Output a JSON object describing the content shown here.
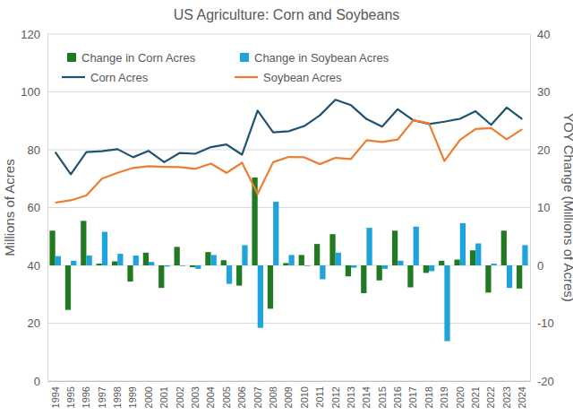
{
  "chart_data": {
    "type": "combo",
    "title": "US Agriculture: Corn and Soybeans",
    "y_label": "Millions of Acres",
    "y2_label": "YOY Change (Millions of Acres)",
    "categories": [
      "1994",
      "1995",
      "1996",
      "1997",
      "1998",
      "1999",
      "2000",
      "2001",
      "2002",
      "2003",
      "2004",
      "2005",
      "2006",
      "2007",
      "2008",
      "2009",
      "2010",
      "2011",
      "2012",
      "2013",
      "2014",
      "2015",
      "2016",
      "2017",
      "2018",
      "2019",
      "2020",
      "2021",
      "2022",
      "2023",
      "2024"
    ],
    "ylim": [
      0,
      120
    ],
    "yticks": [
      0,
      20,
      40,
      60,
      80,
      100,
      120
    ],
    "y2lim": [
      -20,
      40
    ],
    "y2ticks": [
      -20,
      -10,
      0,
      10,
      20,
      30,
      40
    ],
    "grid": true,
    "legend": "top-left",
    "series": [
      {
        "name": "Change in Corn Acres",
        "type": "bar",
        "axis": "y2",
        "color": "#217a21",
        "values": [
          6.0,
          -7.7,
          7.7,
          0.3,
          0.7,
          -2.8,
          2.2,
          -3.9,
          3.2,
          -0.3,
          2.3,
          0.9,
          -3.5,
          15.2,
          -7.5,
          0.4,
          1.8,
          3.7,
          5.4,
          -1.9,
          -4.8,
          -2.6,
          6.0,
          -3.8,
          -1.3,
          0.8,
          1.0,
          2.6,
          -4.7,
          6.0,
          -4.0
        ]
      },
      {
        "name": "Change in Soybean Acres",
        "type": "bar",
        "axis": "y2",
        "color": "#1fa3dc",
        "values": [
          1.6,
          0.8,
          1.7,
          5.8,
          2.0,
          1.7,
          0.6,
          -0.2,
          -0.1,
          -0.6,
          1.8,
          -3.2,
          3.5,
          -10.8,
          11.0,
          1.8,
          -0.1,
          -2.4,
          2.2,
          -0.4,
          6.5,
          -0.6,
          0.8,
          6.7,
          -1.0,
          -13.1,
          7.3,
          3.8,
          0.3,
          -3.9,
          3.5
        ]
      },
      {
        "name": "Corn Acres",
        "type": "line",
        "color": "#1f5470",
        "values": [
          79.2,
          71.5,
          79.2,
          79.5,
          80.2,
          77.4,
          79.6,
          75.7,
          78.9,
          78.6,
          80.9,
          81.8,
          78.3,
          93.5,
          86.0,
          86.4,
          88.2,
          91.9,
          97.3,
          95.4,
          90.6,
          88.0,
          94.0,
          90.2,
          88.9,
          89.7,
          90.7,
          93.3,
          88.6,
          94.6,
          90.6
        ]
      },
      {
        "name": "Soybean Acres",
        "type": "line",
        "color": "#ed7d31",
        "values": [
          61.7,
          62.5,
          64.2,
          70.0,
          72.0,
          73.7,
          74.3,
          74.1,
          74.0,
          73.4,
          75.2,
          72.0,
          75.5,
          64.7,
          75.7,
          77.5,
          77.4,
          75.0,
          77.2,
          76.8,
          83.3,
          82.7,
          83.5,
          90.2,
          89.2,
          76.1,
          83.4,
          87.2,
          87.5,
          83.6,
          87.1
        ]
      }
    ]
  }
}
